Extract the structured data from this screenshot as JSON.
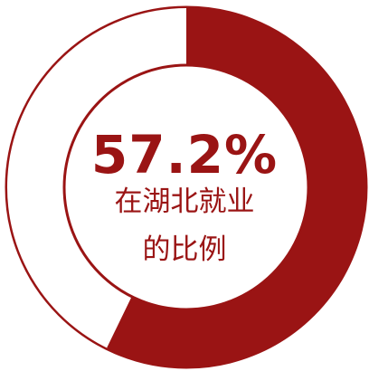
{
  "chart_data": {
    "type": "pie",
    "values": [
      57.2,
      42.8
    ],
    "colors": [
      "#9a1414",
      "#ffffff"
    ],
    "outline_color": "#9a1414",
    "center": {
      "value_text": "57.2%",
      "label_line1": "在湖北就业",
      "label_line2": "的比例"
    }
  }
}
